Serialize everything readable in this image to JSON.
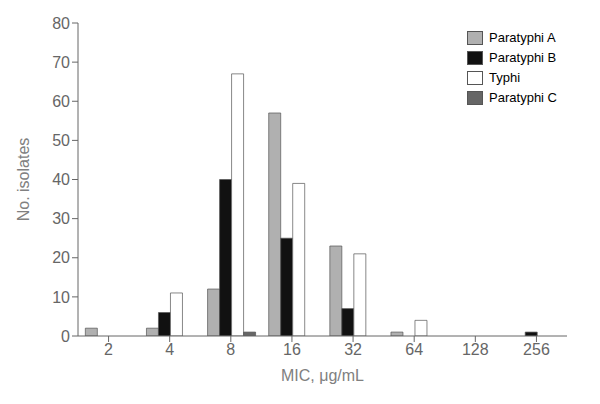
{
  "chart_data": {
    "type": "bar",
    "xlabel": "MIC, μg/mL",
    "ylabel": "No. isolates",
    "categories": [
      "2",
      "4",
      "8",
      "16",
      "32",
      "64",
      "128",
      "256"
    ],
    "series": [
      {
        "name": "Paratyphi A",
        "color": "#b0b0b0",
        "values": [
          2,
          2,
          12,
          57,
          23,
          1,
          0,
          0
        ]
      },
      {
        "name": "Paratyphi B",
        "color": "#111111",
        "values": [
          0,
          6,
          40,
          25,
          7,
          0,
          0,
          1
        ]
      },
      {
        "name": "Typhi",
        "color": "#ffffff",
        "values": [
          0,
          11,
          67,
          39,
          21,
          4,
          0,
          0
        ]
      },
      {
        "name": "Paratyphi C",
        "color": "#666666",
        "values": [
          0,
          0,
          1,
          0,
          0,
          0,
          0,
          0
        ]
      }
    ],
    "ylim": [
      0,
      80
    ],
    "yticks": [
      0,
      10,
      20,
      30,
      40,
      50,
      60,
      70,
      80
    ],
    "grid": false,
    "legend": "upper right"
  }
}
